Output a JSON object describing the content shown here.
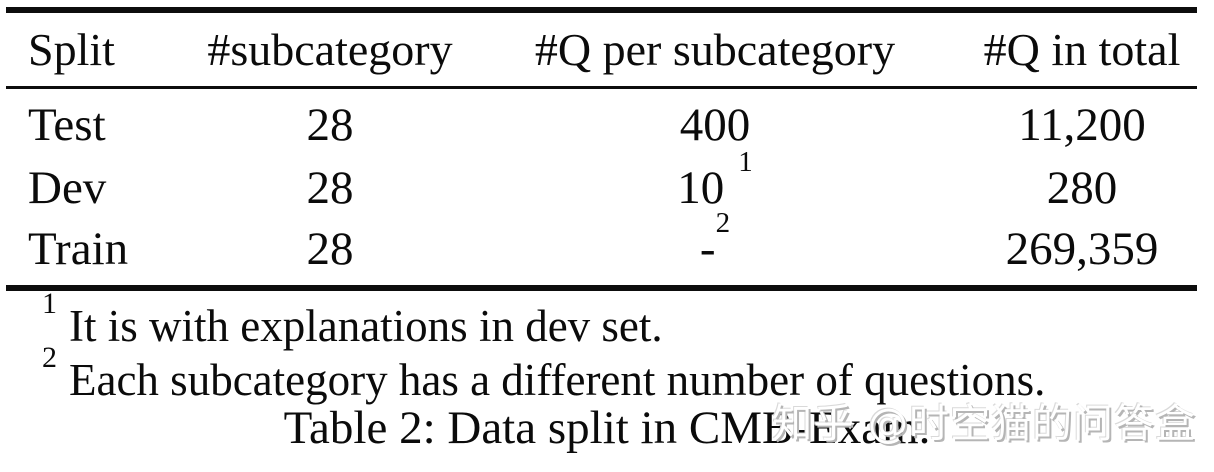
{
  "table": {
    "header": {
      "col_split": "Split",
      "col_subcategory": "#subcategory",
      "col_q_per_subcategory": "#Q per subcategory",
      "col_q_total": "#Q in total"
    },
    "rows": [
      {
        "split": "Test",
        "subcategory": "28",
        "q_per": "400",
        "q_per_sup": "",
        "q_total": "11,200"
      },
      {
        "split": "Dev",
        "subcategory": "28",
        "q_per": "10",
        "q_per_sup": "1",
        "q_total": "280"
      },
      {
        "split": "Train",
        "subcategory": "28",
        "q_per": "-",
        "q_per_sup": "2",
        "q_total": "269,359"
      }
    ]
  },
  "footnotes": [
    {
      "marker": "1",
      "text": "It is with explanations in dev set."
    },
    {
      "marker": "2",
      "text": "Each subcategory has a different number of questions."
    }
  ],
  "caption": "Table 2: Data split in CMB-Exam.",
  "watermark": {
    "text": "知乎 @时空猫的问答盒"
  },
  "colors": {
    "background": "#ffffff",
    "text": "#0b0b0b",
    "rule": "#0d0d0d",
    "watermark_shadow": "#b5b5b5"
  }
}
